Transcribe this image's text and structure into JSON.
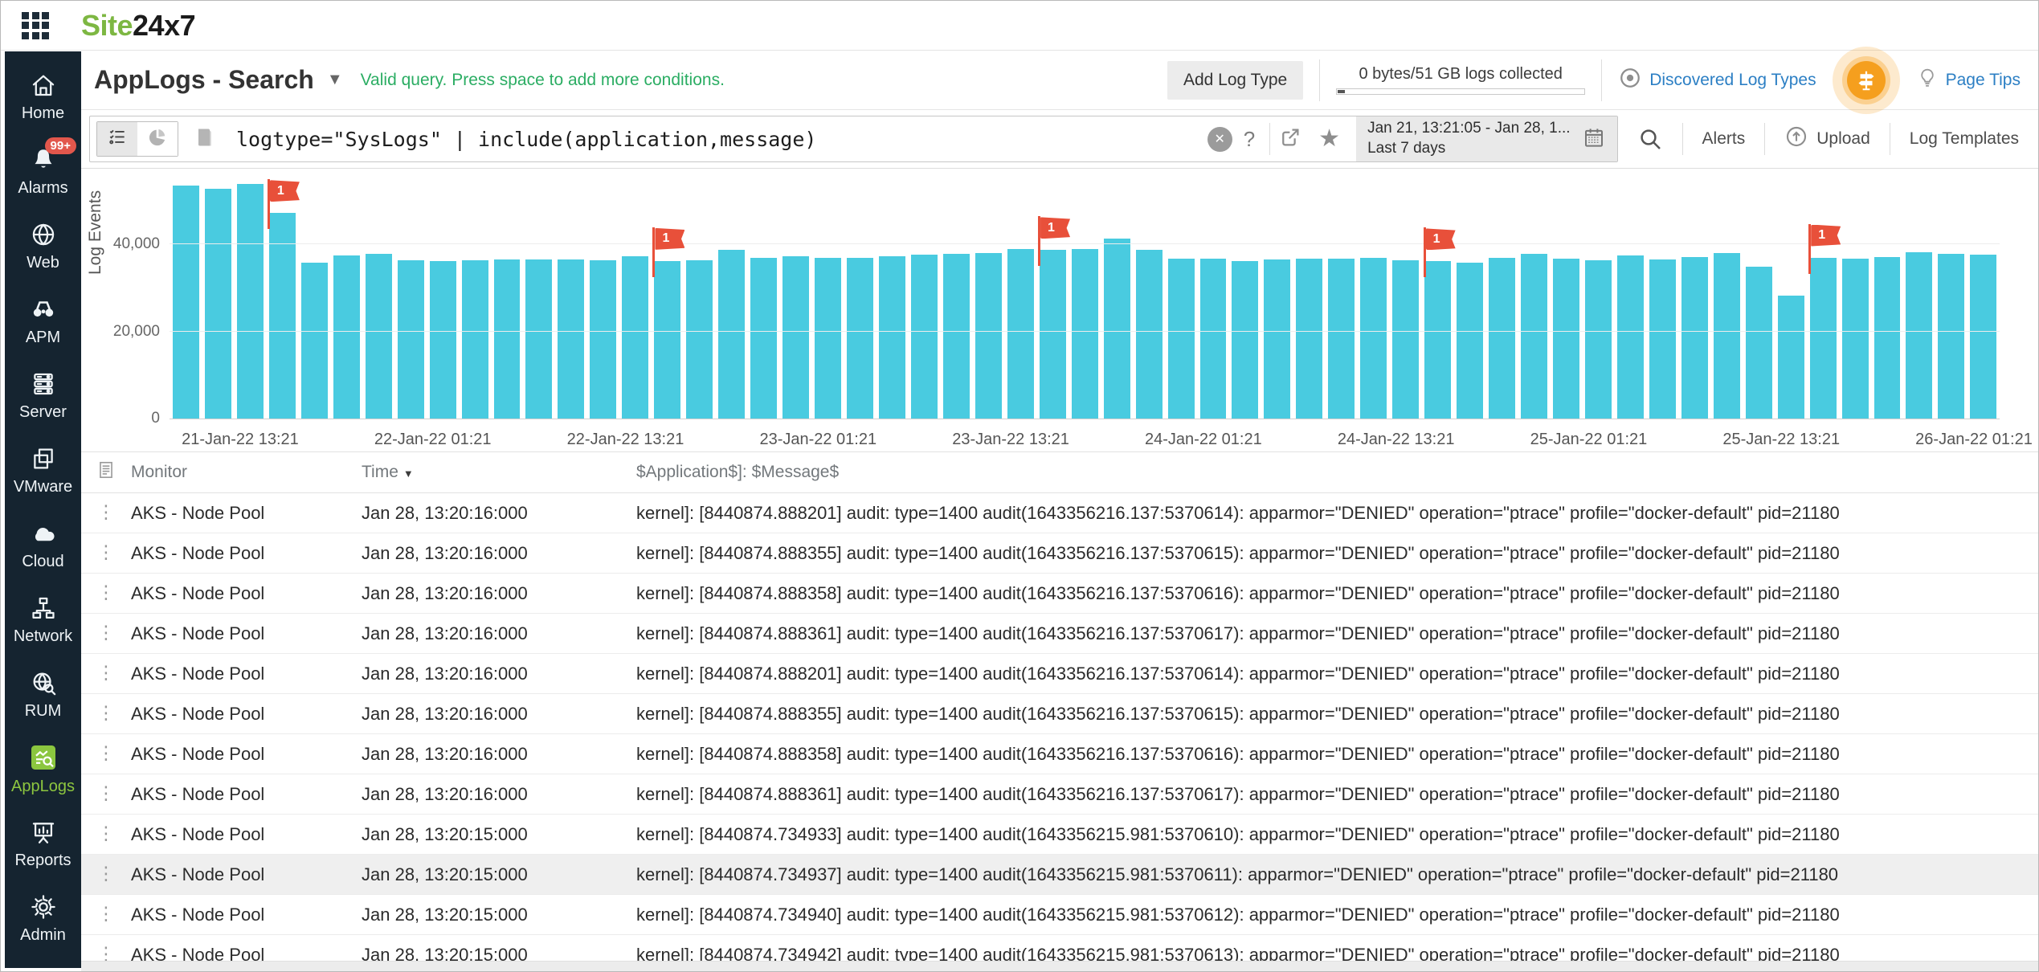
{
  "topbar": {
    "logo_site": "Site",
    "logo_24x7": "24x7"
  },
  "sidebar": {
    "items": [
      {
        "label": "Home",
        "icon": "home-icon",
        "active": false,
        "badge": null
      },
      {
        "label": "Alarms",
        "icon": "bell-icon",
        "active": false,
        "badge": "99+"
      },
      {
        "label": "Web",
        "icon": "globe-icon",
        "active": false,
        "badge": null
      },
      {
        "label": "APM",
        "icon": "binoculars-icon",
        "active": false,
        "badge": null
      },
      {
        "label": "Server",
        "icon": "server-icon",
        "active": false,
        "badge": null
      },
      {
        "label": "VMware",
        "icon": "vmware-icon",
        "active": false,
        "badge": null
      },
      {
        "label": "Cloud",
        "icon": "cloud-icon",
        "active": false,
        "badge": null
      },
      {
        "label": "Network",
        "icon": "network-icon",
        "active": false,
        "badge": null
      },
      {
        "label": "RUM",
        "icon": "rum-icon",
        "active": false,
        "badge": null
      },
      {
        "label": "AppLogs",
        "icon": "applogs-icon",
        "active": true,
        "badge": null
      },
      {
        "label": "Reports",
        "icon": "reports-icon",
        "active": false,
        "badge": null
      },
      {
        "label": "Admin",
        "icon": "gear-icon",
        "active": false,
        "badge": null
      }
    ]
  },
  "header": {
    "title": "AppLogs - Search",
    "hint": "Valid query. Press space to add more conditions.",
    "add_log_type": "Add Log Type",
    "usage_text": "0 bytes/51 GB logs collected",
    "discovered_log_types": "Discovered Log Types",
    "page_tips": "Page Tips"
  },
  "searchbar": {
    "query": "logtype=\"SysLogs\" | include(application,message)",
    "help": "?",
    "date_range_line1": "Jan 21, 13:21:05 - Jan 28, 1...",
    "date_range_line2": "Last 7 days",
    "alerts": "Alerts",
    "upload": "Upload",
    "log_templates": "Log Templates"
  },
  "chart_data": {
    "type": "bar",
    "title": "",
    "xlabel": "",
    "ylabel": "Log Events",
    "ylim": [
      0,
      55000
    ],
    "yticks": [
      0,
      20000,
      40000
    ],
    "ytick_labels": [
      "0",
      "20,000",
      "40,000"
    ],
    "x_tick_labels": [
      "21-Jan-22 13:21",
      "22-Jan-22 01:21",
      "22-Jan-22 13:21",
      "23-Jan-22 01:21",
      "23-Jan-22 13:21",
      "24-Jan-22 01:21",
      "24-Jan-22 13:21",
      "25-Jan-22 01:21",
      "25-Jan-22 13:21",
      "26-Jan-22 01:21"
    ],
    "bucket_hours": 2,
    "grid": true,
    "legend": false,
    "bar_color": "#49cbe0",
    "flag_color": "#e8503a",
    "values": [
      53500,
      52800,
      53900,
      47200,
      35800,
      37400,
      37900,
      36300,
      36100,
      36400,
      36500,
      36500,
      36600,
      36300,
      37200,
      36200,
      36400,
      38700,
      36900,
      37200,
      37000,
      37000,
      37300,
      37600,
      37800,
      38100,
      38900,
      38700,
      38900,
      41300,
      38800,
      36700,
      36800,
      36200,
      36500,
      36700,
      36700,
      36900,
      36400,
      36100,
      35800,
      37000,
      37800,
      36800,
      36400,
      37400,
      36600,
      37100,
      38000,
      34800,
      28200,
      37000,
      36800,
      37100,
      38200,
      37900,
      37600
    ],
    "flags": [
      {
        "bar_index": 3,
        "label": "1"
      },
      {
        "bar_index": 15,
        "label": "1"
      },
      {
        "bar_index": 27,
        "label": "1"
      },
      {
        "bar_index": 39,
        "label": "1"
      },
      {
        "bar_index": 51,
        "label": "1"
      }
    ]
  },
  "table": {
    "columns": [
      "Monitor",
      "Time",
      "$Application$]: $Message$"
    ],
    "sort_icon": "▼",
    "highlighted_row_index": 9,
    "rows": [
      {
        "monitor": "AKS - Node Pool",
        "time": "Jan 28, 13:20:16:000",
        "message": "kernel]: [8440874.888201] audit: type=1400 audit(1643356216.137:5370614): apparmor=\"DENIED\" operation=\"ptrace\" profile=\"docker-default\" pid=21180"
      },
      {
        "monitor": "AKS - Node Pool",
        "time": "Jan 28, 13:20:16:000",
        "message": "kernel]: [8440874.888355] audit: type=1400 audit(1643356216.137:5370615): apparmor=\"DENIED\" operation=\"ptrace\" profile=\"docker-default\" pid=21180"
      },
      {
        "monitor": "AKS - Node Pool",
        "time": "Jan 28, 13:20:16:000",
        "message": "kernel]: [8440874.888358] audit: type=1400 audit(1643356216.137:5370616): apparmor=\"DENIED\" operation=\"ptrace\" profile=\"docker-default\" pid=21180"
      },
      {
        "monitor": "AKS - Node Pool",
        "time": "Jan 28, 13:20:16:000",
        "message": "kernel]: [8440874.888361] audit: type=1400 audit(1643356216.137:5370617): apparmor=\"DENIED\" operation=\"ptrace\" profile=\"docker-default\" pid=21180"
      },
      {
        "monitor": "AKS - Node Pool",
        "time": "Jan 28, 13:20:16:000",
        "message": "kernel]: [8440874.888201] audit: type=1400 audit(1643356216.137:5370614): apparmor=\"DENIED\" operation=\"ptrace\" profile=\"docker-default\" pid=21180"
      },
      {
        "monitor": "AKS - Node Pool",
        "time": "Jan 28, 13:20:16:000",
        "message": "kernel]: [8440874.888355] audit: type=1400 audit(1643356216.137:5370615): apparmor=\"DENIED\" operation=\"ptrace\" profile=\"docker-default\" pid=21180"
      },
      {
        "monitor": "AKS - Node Pool",
        "time": "Jan 28, 13:20:16:000",
        "message": "kernel]: [8440874.888358] audit: type=1400 audit(1643356216.137:5370616): apparmor=\"DENIED\" operation=\"ptrace\" profile=\"docker-default\" pid=21180"
      },
      {
        "monitor": "AKS - Node Pool",
        "time": "Jan 28, 13:20:16:000",
        "message": "kernel]: [8440874.888361] audit: type=1400 audit(1643356216.137:5370617): apparmor=\"DENIED\" operation=\"ptrace\" profile=\"docker-default\" pid=21180"
      },
      {
        "monitor": "AKS - Node Pool",
        "time": "Jan 28, 13:20:15:000",
        "message": "kernel]: [8440874.734933] audit: type=1400 audit(1643356215.981:5370610): apparmor=\"DENIED\" operation=\"ptrace\" profile=\"docker-default\" pid=21180"
      },
      {
        "monitor": "AKS - Node Pool",
        "time": "Jan 28, 13:20:15:000",
        "message": "kernel]: [8440874.734937] audit: type=1400 audit(1643356215.981:5370611): apparmor=\"DENIED\" operation=\"ptrace\" profile=\"docker-default\" pid=21180"
      },
      {
        "monitor": "AKS - Node Pool",
        "time": "Jan 28, 13:20:15:000",
        "message": "kernel]: [8440874.734940] audit: type=1400 audit(1643356215.981:5370612): apparmor=\"DENIED\" operation=\"ptrace\" profile=\"docker-default\" pid=21180"
      },
      {
        "monitor": "AKS - Node Pool",
        "time": "Jan 28, 13:20:15:000",
        "message": "kernel]: [8440874.734942] audit: type=1400 audit(1643356215.981:5370613): apparmor=\"DENIED\" operation=\"ptrace\" profile=\"docker-default\" pid=21180"
      }
    ]
  }
}
